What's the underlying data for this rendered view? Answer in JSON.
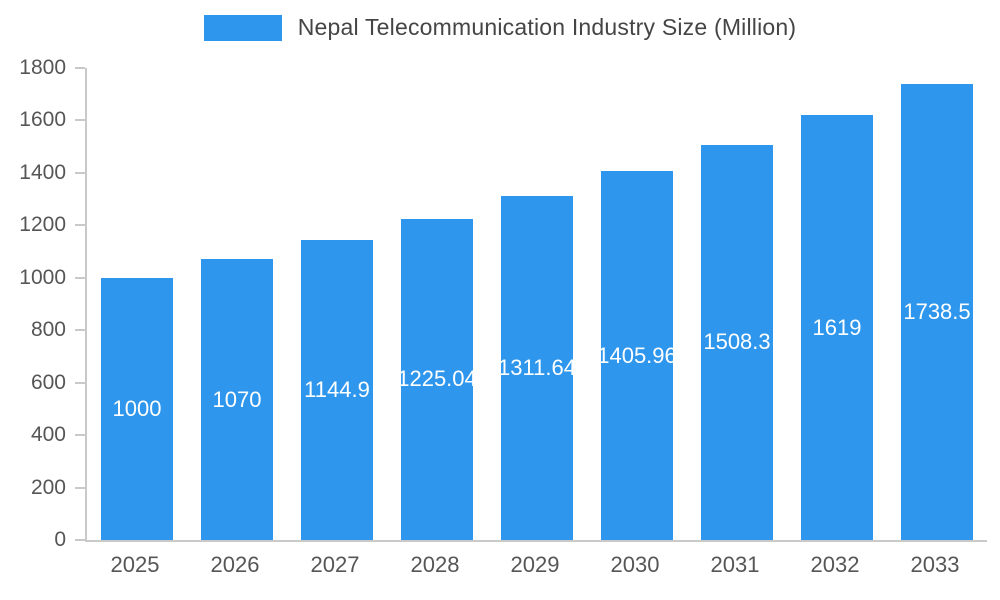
{
  "chart_data": {
    "type": "bar",
    "title": "Nepal Telecommunication Industry Size (Million)",
    "categories": [
      "2025",
      "2026",
      "2027",
      "2028",
      "2029",
      "2030",
      "2031",
      "2032",
      "2033"
    ],
    "values": [
      1000,
      1070,
      1144.9,
      1225.04,
      1311.64,
      1405.96,
      1508.3,
      1619,
      1738.5
    ],
    "value_labels": [
      "1000",
      "1070",
      "1144.9",
      "1225.04",
      "1311.64",
      "1405.96",
      "1508.3",
      "1619",
      "1738.5"
    ],
    "xlabel": "",
    "ylabel": "",
    "ylim": [
      0,
      1800
    ],
    "yticks": [
      0,
      200,
      400,
      600,
      800,
      1000,
      1200,
      1400,
      1600,
      1800
    ],
    "grid": false,
    "legend_position": "top",
    "bar_color": "#2E96EC",
    "bar_label_color": "#ffffff",
    "axis_color": "#c9c9c9",
    "tick_text_color": "#565656",
    "title_color": "#454545"
  }
}
